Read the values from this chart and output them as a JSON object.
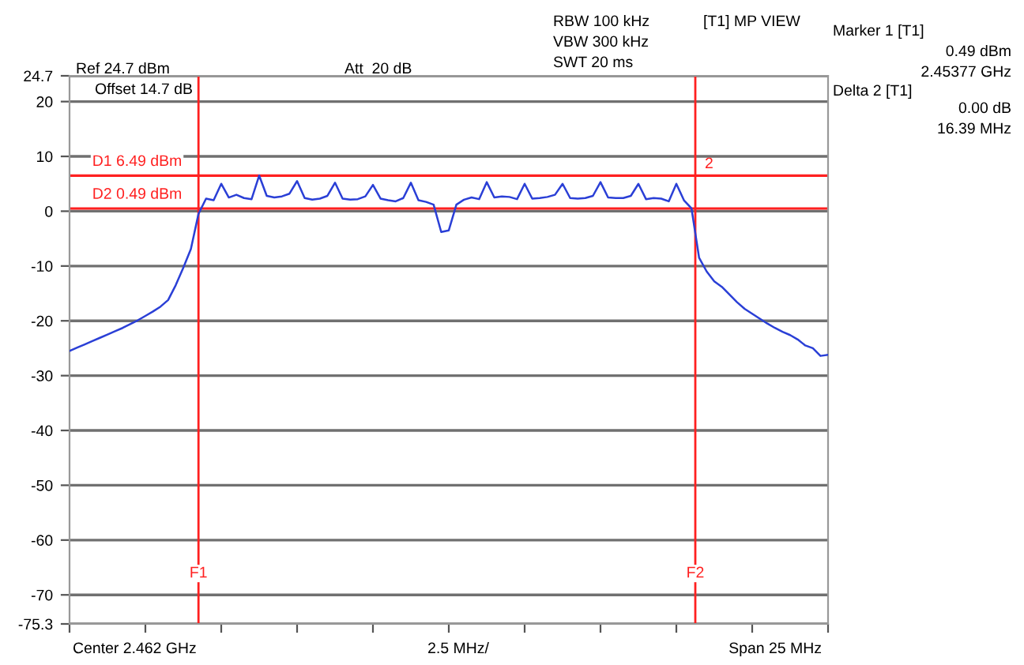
{
  "chart_data": {
    "type": "line",
    "annotations": [
      "Ref 24.7 dBm",
      "Att  20 dB",
      "Offset 14.7 dB",
      "RBW 100 kHz",
      "VBW 300 kHz",
      "SWT 20 ms",
      "[T1] MP VIEW",
      "Marker 1 [T1]",
      "0.49 dBm",
      "2.45377 GHz",
      "Delta 2 [T1]",
      "0.00 dB",
      "16.39 MHz",
      "Center 2.462 GHz",
      "2.5 MHz/",
      "Span 25 MHz",
      "2",
      "F1",
      "F2"
    ],
    "categories": [
      null,
      null,
      null,
      null,
      null,
      null,
      null,
      null,
      null,
      null,
      null,
      null,
      null,
      null,
      null,
      null,
      null,
      null,
      null,
      null,
      null,
      null,
      null,
      null,
      null,
      null,
      null,
      null,
      null,
      null,
      null,
      null,
      null,
      null,
      null,
      null,
      null,
      null,
      null,
      null,
      null,
      null,
      null,
      null,
      null,
      null,
      null,
      null,
      null,
      null,
      null,
      null,
      null,
      null,
      null,
      null,
      null,
      null,
      null,
      null,
      null,
      null,
      null,
      null,
      null,
      null,
      null,
      null,
      null,
      null,
      null,
      null,
      null,
      null,
      null,
      null,
      null,
      null,
      null,
      null,
      null,
      null,
      null,
      null,
      null,
      null,
      null,
      null,
      null,
      null,
      null,
      null,
      null,
      null,
      null,
      null,
      null,
      null,
      null,
      null,
      null
    ],
    "series": [
      {
        "color": "#2a3fd6",
        "values": [
          -25.5,
          -24.9,
          -24.3,
          -23.7,
          -23.1,
          -22.5,
          -21.9,
          -21.3,
          -20.6,
          -19.9,
          -19.1,
          -18.3,
          -17.4,
          -16.2,
          -13.5,
          -10.3,
          -6.9,
          -0.5,
          2.3,
          2.0,
          5.0,
          2.5,
          3.0,
          2.4,
          2.2,
          6.5,
          2.8,
          2.5,
          2.7,
          3.2,
          5.5,
          2.4,
          2.1,
          2.3,
          2.8,
          5.2,
          2.3,
          2.1,
          2.2,
          2.7,
          4.8,
          2.3,
          2.0,
          1.8,
          2.4,
          5.2,
          2.0,
          1.7,
          1.2,
          -3.8,
          -3.5,
          1.2,
          2.1,
          2.5,
          2.2,
          5.3,
          2.5,
          2.7,
          2.6,
          2.2,
          5.0,
          2.3,
          2.4,
          2.6,
          3.0,
          5.0,
          2.4,
          2.3,
          2.4,
          2.8,
          5.3,
          2.5,
          2.4,
          2.4,
          2.8,
          5.0,
          2.2,
          2.4,
          2.3,
          1.8,
          5.0,
          2.0,
          0.5,
          -8.5,
          -11.0,
          -12.8,
          -13.8,
          -15.2,
          -16.6,
          -17.8,
          -18.7,
          -19.6,
          -20.5,
          -21.3,
          -22.0,
          -22.6,
          -23.4,
          -24.5,
          -25.0,
          -26.4,
          -26.2
        ]
      }
    ],
    "ylim": [
      -75.3,
      24.7
    ],
    "yticks": [
      -75.3,
      -70,
      -60,
      -50,
      -40,
      -30,
      -20,
      -10,
      0,
      10,
      20,
      24.7
    ],
    "grid": "y",
    "ref_lines": [
      {
        "axis": "y",
        "value": 6.49,
        "label": "D1 6.49 dBm",
        "color": "#ff2020"
      },
      {
        "axis": "y",
        "value": 0.49,
        "label": "D2 0.49 dBm",
        "color": "#ff2020"
      }
    ]
  }
}
